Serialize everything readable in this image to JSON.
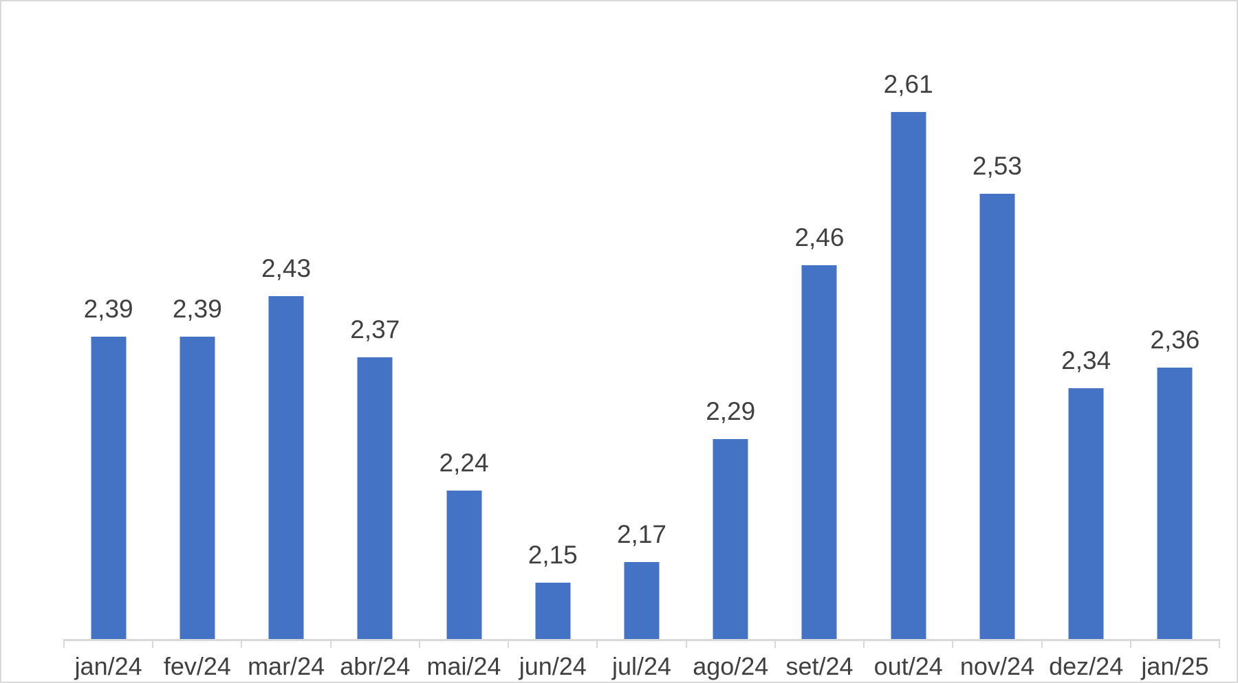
{
  "chart_data": {
    "type": "bar",
    "title": "",
    "xlabel": "",
    "ylabel": "",
    "categories": [
      "jan/24",
      "fev/24",
      "mar/24",
      "abr/24",
      "mai/24",
      "jun/24",
      "jul/24",
      "ago/24",
      "set/24",
      "out/24",
      "nov/24",
      "dez/24",
      "jan/25"
    ],
    "values": [
      2.39,
      2.39,
      2.43,
      2.37,
      2.24,
      2.15,
      2.17,
      2.29,
      2.46,
      2.61,
      2.53,
      2.34,
      2.36
    ],
    "value_labels": [
      "2,39",
      "2,39",
      "2,43",
      "2,37",
      "2,24",
      "2,15",
      "2,17",
      "2,29",
      "2,46",
      "2,61",
      "2,53",
      "2,34",
      "2,36"
    ],
    "ylim": [
      2.095,
      2.65
    ],
    "y_axis_visible": false,
    "gridlines": false,
    "legend": "none",
    "data_labels_visible": true,
    "decimal_separator": ",",
    "colors": {
      "bar": "#4472C4",
      "label_text": "#404040",
      "axis_line": "#D9D9D9",
      "tick": "#D9D9D9",
      "frame_border": "#D9D9D9",
      "background": "#FFFFFF"
    }
  }
}
